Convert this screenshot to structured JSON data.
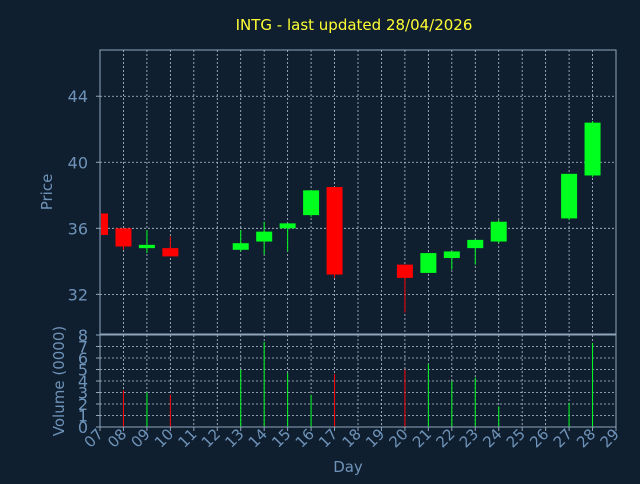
{
  "chart_data": {
    "type": "candlestick",
    "title": "INTG - last updated 28/04/2026",
    "xlabel": "Day",
    "price_panel": {
      "ylabel": "Price",
      "ylim": [
        29.6,
        46.8
      ],
      "yticks": [
        "32",
        "36",
        "40",
        "44"
      ],
      "grid": true
    },
    "volume_panel": {
      "ylabel": "Volume (0000)",
      "ylim": [
        0,
        8
      ],
      "yticks": [
        "0",
        "1",
        "2",
        "3",
        "4",
        "5",
        "6",
        "7",
        "8"
      ],
      "grid": true
    },
    "x_ticks": [
      "07",
      "08",
      "09",
      "10",
      "11",
      "12",
      "13",
      "14",
      "15",
      "16",
      "17",
      "18",
      "19",
      "20",
      "21",
      "22",
      "23",
      "24",
      "25",
      "26",
      "27",
      "28",
      "29"
    ],
    "candles": [
      {
        "day": "07",
        "open": 36.9,
        "close": 35.6,
        "high": 36.9,
        "low": 35.6,
        "volume": 0
      },
      {
        "day": "08",
        "open": 36.0,
        "close": 34.9,
        "high": 36.0,
        "low": 34.7,
        "volume": 3.2
      },
      {
        "day": "09",
        "open": 34.8,
        "close": 35.0,
        "high": 35.9,
        "low": 34.5,
        "volume": 3.0
      },
      {
        "day": "10",
        "open": 34.8,
        "close": 34.3,
        "high": 35.5,
        "low": 34.3,
        "volume": 2.8
      },
      {
        "day": "13",
        "open": 34.7,
        "close": 35.1,
        "high": 35.9,
        "low": 34.6,
        "volume": 5.0
      },
      {
        "day": "14",
        "open": 35.2,
        "close": 35.8,
        "high": 36.4,
        "low": 34.4,
        "volume": 7.4
      },
      {
        "day": "15",
        "open": 36.0,
        "close": 36.3,
        "high": 36.3,
        "low": 34.6,
        "volume": 4.7
      },
      {
        "day": "16",
        "open": 36.8,
        "close": 38.3,
        "high": 38.3,
        "low": 36.7,
        "volume": 2.8
      },
      {
        "day": "17",
        "open": 38.5,
        "close": 33.2,
        "high": 38.5,
        "low": 33.0,
        "volume": 4.6
      },
      {
        "day": "20",
        "open": 33.8,
        "close": 33.0,
        "high": 33.8,
        "low": 30.9,
        "volume": 5.0
      },
      {
        "day": "21",
        "open": 33.3,
        "close": 34.5,
        "high": 34.5,
        "low": 33.3,
        "volume": 5.5
      },
      {
        "day": "22",
        "open": 34.2,
        "close": 34.6,
        "high": 34.6,
        "low": 33.5,
        "volume": 4.0
      },
      {
        "day": "23",
        "open": 34.8,
        "close": 35.3,
        "high": 35.3,
        "low": 33.8,
        "volume": 4.3
      },
      {
        "day": "24",
        "open": 35.2,
        "close": 36.4,
        "high": 36.5,
        "low": 35.1,
        "volume": 1.8
      },
      {
        "day": "27",
        "open": 36.6,
        "close": 39.3,
        "high": 39.3,
        "low": 36.5,
        "volume": 2.1
      },
      {
        "day": "28",
        "open": 39.2,
        "close": 42.4,
        "high": 42.5,
        "low": 39.1,
        "volume": 7.3
      }
    ]
  },
  "colors": {
    "background": "#0f1f30",
    "title": "#ffff33",
    "axis_label": "#6f93b8",
    "up": "#00ff1e",
    "down": "#ff0000",
    "grid": "#b8c4d0",
    "frame": "#8fa6bc"
  }
}
